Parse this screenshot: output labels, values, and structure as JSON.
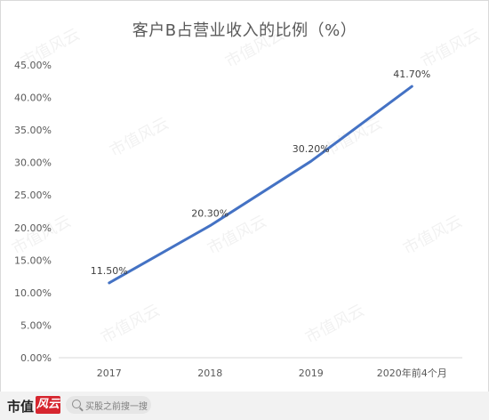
{
  "chart_data": {
    "type": "line",
    "title": "客户B占营业收入的比例（%）",
    "categories": [
      "2017",
      "2018",
      "2019",
      "2020年前4个月"
    ],
    "series": [
      {
        "values": [
          11.5,
          20.3,
          30.2,
          41.7
        ],
        "data_labels": [
          "11.50%",
          "20.30%",
          "30.20%",
          "41.70%"
        ],
        "color": "#4472c4"
      }
    ],
    "y_ticks": [
      "0.00%",
      "5.00%",
      "10.00%",
      "15.00%",
      "20.00%",
      "25.00%",
      "30.00%",
      "35.00%",
      "40.00%",
      "45.00%"
    ],
    "ylim": [
      0,
      45
    ],
    "y_step": 5,
    "grid": false,
    "legend": "none"
  },
  "watermark": {
    "text": "市值风云"
  },
  "footer": {
    "logo": "市值",
    "logo_badge": "风云",
    "search_placeholder": "买股之前搜一搜"
  },
  "colors": {
    "line": "#4472c4",
    "axis": "#d9d9d9",
    "text": "#595959",
    "brand_red": "#d6262f"
  }
}
